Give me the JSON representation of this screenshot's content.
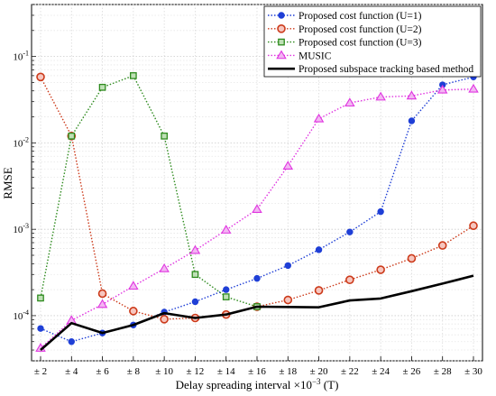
{
  "chart_data": {
    "type": "line",
    "title": "",
    "xlabel_main": "Delay spreading interval ×10",
    "xlabel_exp": "−3",
    "xlabel_unit": " (T)",
    "ylabel": "RMSE",
    "yscale": "log",
    "ylim": [
      3e-05,
      0.4
    ],
    "grid": true,
    "legend_position": "top-right",
    "categories": [
      "± 2",
      "± 4",
      "± 6",
      "± 8",
      "± 10",
      "± 12",
      "± 14",
      "± 16",
      "± 18",
      "± 20",
      "± 22",
      "± 24",
      "± 26",
      "± 28",
      "± 30"
    ],
    "y_ticks": [
      {
        "value": 0.0001,
        "mantissa": "10",
        "exp": "-4"
      },
      {
        "value": 0.001,
        "mantissa": "10",
        "exp": "-3"
      },
      {
        "value": 0.01,
        "mantissa": "10",
        "exp": "-2"
      },
      {
        "value": 0.1,
        "mantissa": "10",
        "exp": "-1"
      }
    ],
    "series": [
      {
        "name": "Proposed cost function (U=1)",
        "color": "#1f3fd6",
        "marker": "circle",
        "dash": "dot",
        "values": [
          7.1e-05,
          5e-05,
          6.3e-05,
          7.8e-05,
          0.00011,
          0.000145,
          0.0002,
          0.00027,
          0.00038,
          0.00058,
          0.00093,
          0.0016,
          0.018,
          0.047,
          0.058
        ]
      },
      {
        "name": "Proposed cost function (U=2)",
        "color": "#cc3a1a",
        "marker": "circle-open",
        "dash": "dot",
        "values": [
          0.058,
          0.012,
          0.00018,
          0.000113,
          9.1e-05,
          9.4e-05,
          0.000103,
          0.000127,
          0.000152,
          0.000196,
          0.00026,
          0.00034,
          0.00046,
          0.00065,
          0.0011
        ]
      },
      {
        "name": "Proposed cost function (U=3)",
        "color": "#2e8b1e",
        "marker": "square",
        "dash": "dot",
        "values": [
          0.00016,
          0.012,
          0.044,
          0.06,
          0.012,
          0.0003,
          0.000165,
          0.000127,
          null,
          null,
          null,
          null,
          null,
          null,
          null
        ]
      },
      {
        "name": "MUSIC",
        "color": "#e035e0",
        "marker": "triangle",
        "dash": "dot",
        "values": [
          4.2e-05,
          8.8e-05,
          0.000135,
          0.00022,
          0.00035,
          0.00057,
          0.00098,
          0.0017,
          0.0054,
          0.019,
          0.029,
          0.034,
          0.035,
          0.041,
          0.042
        ]
      },
      {
        "name": "Proposed subspace tracking based method",
        "color": "#000000",
        "marker": "none",
        "dash": "solid",
        "values": [
          4e-05,
          8.2e-05,
          6.3e-05,
          7.8e-05,
          0.000107,
          9.4e-05,
          0.000103,
          0.000127,
          0.000126,
          0.000125,
          0.00015,
          0.000158,
          0.000192,
          0.000235,
          0.00029
        ]
      }
    ]
  }
}
